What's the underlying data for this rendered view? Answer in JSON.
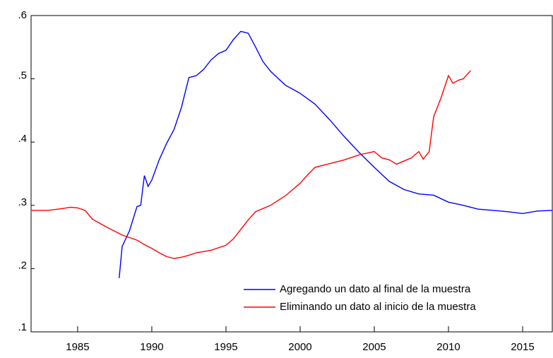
{
  "chart_data": {
    "type": "line",
    "xlim": [
      1981.86,
      2017.0
    ],
    "xticks": [
      1985,
      1990,
      1995,
      2000,
      2005,
      2010,
      2015
    ],
    "ylim": [
      0.1,
      0.6
    ],
    "yticks": [
      {
        "value": 0.1,
        "label": ".1"
      },
      {
        "value": 0.2,
        "label": ".2"
      },
      {
        "value": 0.3,
        "label": ".3"
      },
      {
        "value": 0.4,
        "label": ".4"
      },
      {
        "value": 0.5,
        "label": ".5"
      },
      {
        "value": 0.6,
        "label": ".6"
      }
    ],
    "grid": false,
    "legend": "lower right",
    "series": [
      {
        "name": "Agregando un dato al final de la muestra",
        "color": "#0000ff",
        "x": [
          1987.8,
          1988,
          1988.5,
          1989,
          1989.25,
          1989.5,
          1989.75,
          1990,
          1990.5,
          1991,
          1991.5,
          1992,
          1992.5,
          1993,
          1993.5,
          1994,
          1994.5,
          1995,
          1995.5,
          1996,
          1996.5,
          1997,
          1997.5,
          1998,
          1999,
          2000,
          2001,
          2002,
          2003,
          2004,
          2005,
          2006,
          2007,
          2008,
          2009,
          2010,
          2011,
          2012,
          2013,
          2014,
          2015,
          2016,
          2017
        ],
        "values": [
          0.185,
          0.235,
          0.26,
          0.298,
          0.3,
          0.347,
          0.33,
          0.34,
          0.372,
          0.398,
          0.42,
          0.455,
          0.502,
          0.505,
          0.515,
          0.53,
          0.54,
          0.545,
          0.562,
          0.575,
          0.572,
          0.55,
          0.527,
          0.512,
          0.49,
          0.477,
          0.46,
          0.435,
          0.408,
          0.383,
          0.36,
          0.338,
          0.325,
          0.318,
          0.316,
          0.305,
          0.3,
          0.294,
          0.292,
          0.29,
          0.287,
          0.291,
          0.292
        ]
      },
      {
        "name": "Eliminando un dato al inicio de la muestra",
        "color": "#ff0000",
        "x": [
          1981.9,
          1983,
          1984,
          1984.5,
          1985,
          1985.5,
          1986,
          1987,
          1988,
          1989,
          1989.5,
          1990,
          1990.5,
          1991,
          1991.5,
          1992,
          1992.5,
          1993,
          1994,
          1995,
          1995.5,
          1996,
          1996.5,
          1997,
          1998,
          1999,
          2000,
          2000.5,
          2001,
          2002,
          2003,
          2004,
          2005,
          2005.5,
          2006,
          2006.5,
          2007,
          2007.5,
          2008,
          2008.3,
          2008.7,
          2009,
          2009.5,
          2010,
          2010.3,
          2010.7,
          2011,
          2011.5
        ],
        "values": [
          0.292,
          0.292,
          0.295,
          0.297,
          0.296,
          0.292,
          0.278,
          0.265,
          0.253,
          0.245,
          0.238,
          0.232,
          0.225,
          0.219,
          0.216,
          0.218,
          0.221,
          0.225,
          0.229,
          0.237,
          0.247,
          0.262,
          0.277,
          0.29,
          0.3,
          0.315,
          0.335,
          0.348,
          0.36,
          0.366,
          0.372,
          0.38,
          0.385,
          0.375,
          0.372,
          0.365,
          0.37,
          0.375,
          0.385,
          0.373,
          0.385,
          0.44,
          0.47,
          0.505,
          0.493,
          0.498,
          0.5,
          0.513
        ]
      }
    ]
  }
}
